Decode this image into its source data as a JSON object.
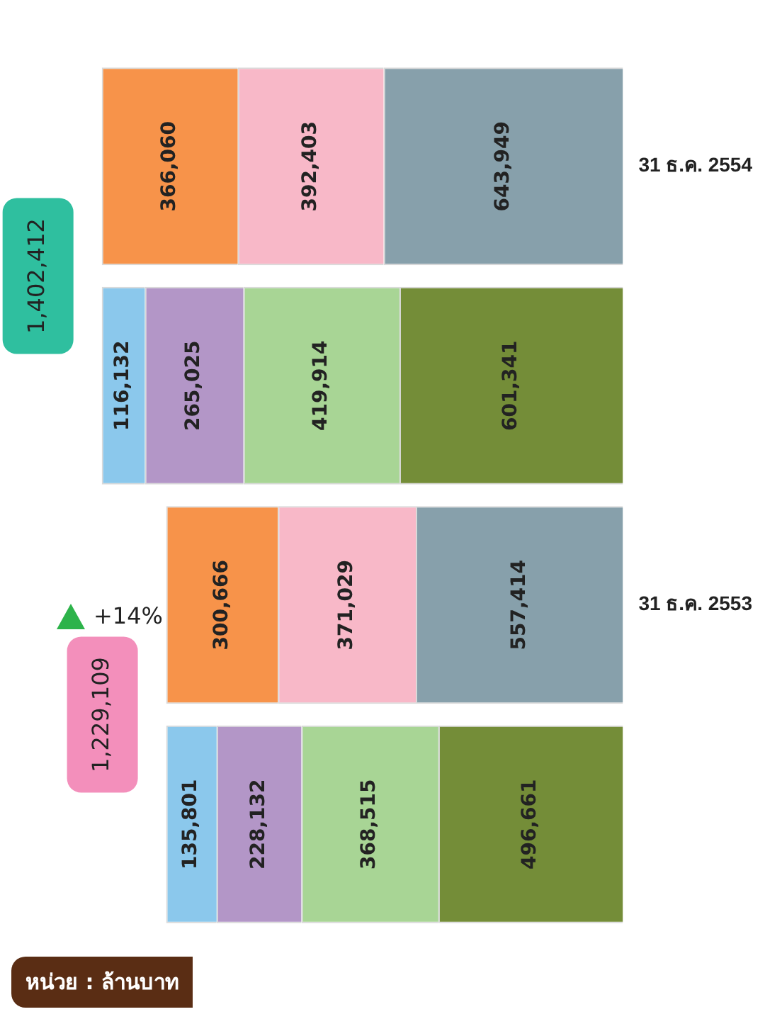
{
  "chart_data": {
    "type": "bar",
    "orientation": "horizontal",
    "stacked": true,
    "legend": false,
    "categories": [
      "31 ธ.ค. 2554",
      null,
      "31 ธ.ค. 2553",
      null
    ],
    "series": [
      {
        "color": "#748d38",
        "values": [
          null,
          601341,
          null,
          496661
        ],
        "value_labels": [
          null,
          "601,341",
          null,
          "496,661"
        ]
      },
      {
        "color": "#a8d595",
        "values": [
          null,
          419914,
          null,
          368515
        ],
        "value_labels": [
          null,
          "419,914",
          null,
          "368,515"
        ]
      },
      {
        "color": "#b396c7",
        "values": [
          null,
          265025,
          null,
          228132
        ],
        "value_labels": [
          null,
          "265,025",
          null,
          "228,132"
        ]
      },
      {
        "color": "#8bc8ec",
        "values": [
          null,
          116132,
          null,
          135801
        ],
        "value_labels": [
          null,
          "116,132",
          null,
          "135,801"
        ]
      },
      {
        "color": "#87a0ab",
        "values": [
          643949,
          null,
          557414,
          null
        ],
        "value_labels": [
          "643,949",
          null,
          "557,414",
          null
        ]
      },
      {
        "color": "#f8b8c8",
        "values": [
          392403,
          null,
          371029,
          null
        ],
        "value_labels": [
          "392,403",
          null,
          "371,029",
          null
        ]
      },
      {
        "color": "#f7934a",
        "values": [
          366060,
          null,
          300666,
          null
        ],
        "value_labels": [
          "366,060",
          null,
          "300,666",
          null
        ]
      }
    ],
    "totals": [
      "1,402,412",
      null,
      "1,229,109",
      null
    ],
    "annotations": [
      "หน่วย : ล้านบาท",
      "+14%"
    ]
  }
}
